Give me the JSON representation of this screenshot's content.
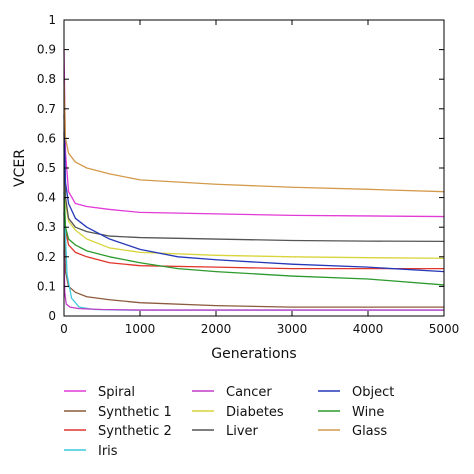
{
  "chart_data": {
    "type": "line",
    "title": "",
    "xlabel": "Generations",
    "ylabel": "VCER",
    "xlim": [
      0,
      5000
    ],
    "ylim": [
      0,
      1
    ],
    "xticks": [
      0,
      1000,
      2000,
      3000,
      4000,
      5000
    ],
    "yticks": [
      0,
      0.1,
      0.2,
      0.3,
      0.4,
      0.5,
      0.6,
      0.7,
      0.8,
      0.9,
      1
    ],
    "xtick_labels": [
      "0",
      "1000",
      "2000",
      "3000",
      "4000",
      "5000"
    ],
    "ytick_labels": [
      "0",
      "0.1",
      "0.2",
      "0.3",
      "0.4",
      "0.5",
      "0.6",
      "0.7",
      "0.8",
      "0.9",
      "1"
    ],
    "grid": false,
    "legend": "below",
    "series": [
      {
        "name": "Spiral",
        "color": "#e23ad6",
        "x": [
          0,
          20,
          60,
          150,
          300,
          600,
          1000,
          2000,
          3000,
          4000,
          5000
        ],
        "y": [
          0.9,
          0.55,
          0.42,
          0.38,
          0.37,
          0.36,
          0.35,
          0.345,
          0.34,
          0.338,
          0.336
        ]
      },
      {
        "name": "Synthetic 1",
        "color": "#8b5a3c",
        "x": [
          0,
          20,
          60,
          150,
          300,
          600,
          1000,
          2000,
          3000,
          4000,
          5000
        ],
        "y": [
          0.35,
          0.15,
          0.1,
          0.08,
          0.065,
          0.055,
          0.045,
          0.035,
          0.03,
          0.03,
          0.03
        ]
      },
      {
        "name": "Synthetic 2",
        "color": "#e0352b",
        "x": [
          0,
          20,
          60,
          150,
          300,
          600,
          1000,
          2000,
          3000,
          4000,
          5000
        ],
        "y": [
          0.4,
          0.29,
          0.24,
          0.215,
          0.2,
          0.18,
          0.17,
          0.165,
          0.16,
          0.16,
          0.16
        ]
      },
      {
        "name": "Iris",
        "color": "#3cc8dc",
        "x": [
          0,
          15,
          40,
          100,
          200,
          400,
          800,
          1500,
          3000,
          5000
        ],
        "y": [
          0.58,
          0.3,
          0.14,
          0.06,
          0.03,
          0.022,
          0.02,
          0.02,
          0.02,
          0.02
        ]
      },
      {
        "name": "Cancer",
        "color": "#c23cc8",
        "x": [
          0,
          10,
          30,
          80,
          200,
          500,
          1000,
          2000,
          3000,
          5000
        ],
        "y": [
          0.22,
          0.08,
          0.04,
          0.03,
          0.025,
          0.022,
          0.02,
          0.02,
          0.02,
          0.02
        ]
      },
      {
        "name": "Diabetes",
        "color": "#d8d43c",
        "x": [
          0,
          20,
          60,
          150,
          300,
          600,
          1000,
          2000,
          3000,
          4000,
          5000
        ],
        "y": [
          0.6,
          0.38,
          0.32,
          0.29,
          0.26,
          0.23,
          0.215,
          0.205,
          0.2,
          0.197,
          0.195
        ]
      },
      {
        "name": "Liver",
        "color": "#555555",
        "x": [
          0,
          20,
          60,
          150,
          300,
          600,
          1000,
          2000,
          3000,
          4000,
          5000
        ],
        "y": [
          0.62,
          0.4,
          0.33,
          0.3,
          0.285,
          0.27,
          0.265,
          0.26,
          0.255,
          0.253,
          0.252
        ]
      },
      {
        "name": "Object",
        "color": "#2438b8",
        "x": [
          0,
          20,
          60,
          150,
          300,
          600,
          1000,
          1500,
          2000,
          3000,
          4000,
          5000
        ],
        "y": [
          0.68,
          0.45,
          0.38,
          0.33,
          0.3,
          0.26,
          0.225,
          0.2,
          0.19,
          0.175,
          0.165,
          0.15
        ]
      },
      {
        "name": "Wine",
        "color": "#2c9a2c",
        "x": [
          0,
          20,
          60,
          150,
          300,
          600,
          1000,
          1500,
          2000,
          3000,
          4000,
          5000
        ],
        "y": [
          0.42,
          0.3,
          0.26,
          0.24,
          0.22,
          0.2,
          0.18,
          0.16,
          0.15,
          0.135,
          0.125,
          0.105
        ]
      },
      {
        "name": "Glass",
        "color": "#d49a4c",
        "x": [
          0,
          20,
          60,
          150,
          300,
          600,
          1000,
          2000,
          3000,
          4000,
          5000
        ],
        "y": [
          0.8,
          0.6,
          0.55,
          0.52,
          0.5,
          0.48,
          0.46,
          0.445,
          0.435,
          0.428,
          0.42
        ]
      }
    ],
    "legend_columns": [
      [
        "Spiral",
        "Synthetic 1",
        "Synthetic 2",
        "Iris"
      ],
      [
        "Cancer",
        "Diabetes",
        "Liver"
      ],
      [
        "Object",
        "Wine",
        "Glass"
      ]
    ]
  }
}
